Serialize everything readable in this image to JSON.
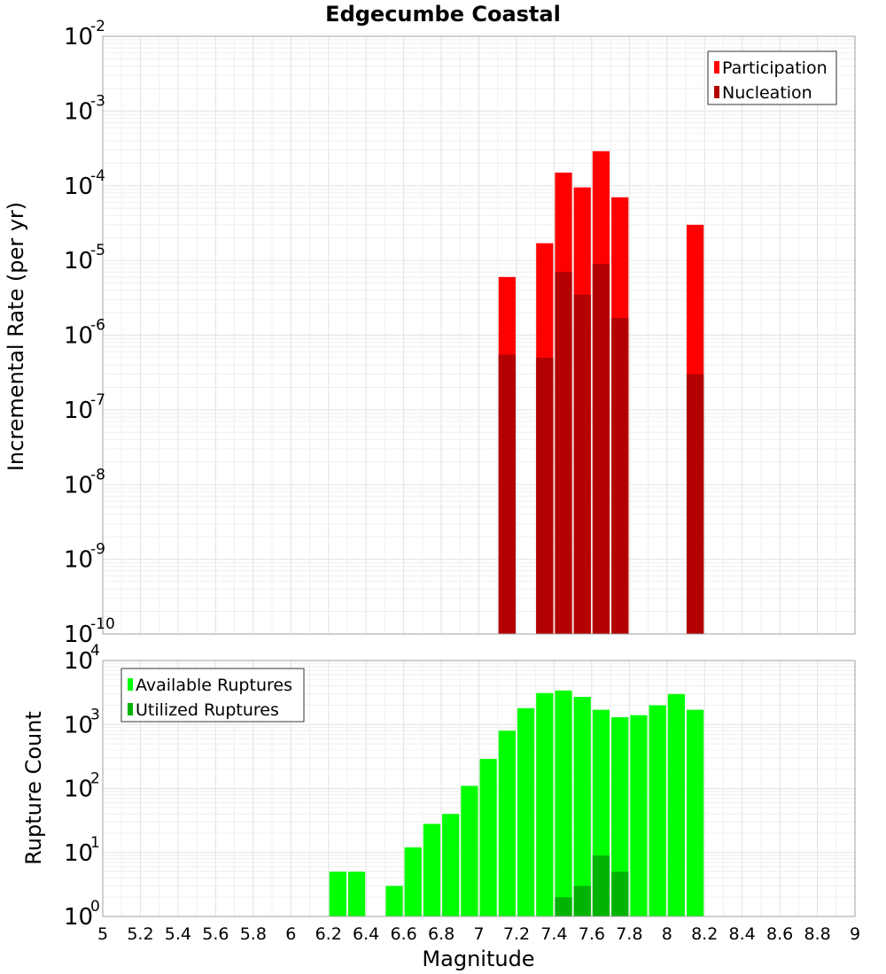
{
  "chart_data": [
    {
      "type": "bar",
      "title": "Edgecumbe Coastal",
      "xlabel": "",
      "ylabel": "Incremental Rate (per yr)",
      "y_scale": "log",
      "ylim_exp": [
        -10,
        -2
      ],
      "xlim": [
        5,
        9
      ],
      "grid": true,
      "legend_position": "top-right",
      "series": [
        {
          "name": "Participation",
          "color": "#ff0000",
          "points": [
            {
              "x": 7.15,
              "y": 6e-06
            },
            {
              "x": 7.35,
              "y": 1.7e-05
            },
            {
              "x": 7.45,
              "y": 0.00015
            },
            {
              "x": 7.55,
              "y": 9.5e-05
            },
            {
              "x": 7.65,
              "y": 0.00029
            },
            {
              "x": 7.75,
              "y": 7e-05
            },
            {
              "x": 8.15,
              "y": 3e-05
            }
          ]
        },
        {
          "name": "Nucleation",
          "color": "#b30000",
          "points": [
            {
              "x": 7.15,
              "y": 5.5e-07
            },
            {
              "x": 7.35,
              "y": 5e-07
            },
            {
              "x": 7.45,
              "y": 7e-06
            },
            {
              "x": 7.55,
              "y": 3.5e-06
            },
            {
              "x": 7.65,
              "y": 9e-06
            },
            {
              "x": 7.75,
              "y": 1.7e-06
            },
            {
              "x": 8.15,
              "y": 3e-07
            }
          ]
        }
      ]
    },
    {
      "type": "bar",
      "title": "",
      "xlabel": "Magnitude",
      "ylabel": "Rupture Count",
      "y_scale": "log",
      "ylim_exp": [
        0,
        4
      ],
      "xlim": [
        5,
        9
      ],
      "x_ticks": [
        "5",
        "5.2",
        "5.4",
        "5.6",
        "5.8",
        "6",
        "6.2",
        "6.4",
        "6.6",
        "6.8",
        "7",
        "7.2",
        "7.4",
        "7.6",
        "7.8",
        "8",
        "8.2",
        "8.4",
        "8.6",
        "8.8",
        "9"
      ],
      "grid": true,
      "legend_position": "top-left",
      "series": [
        {
          "name": "Available Ruptures",
          "color": "#00ff00",
          "points": [
            {
              "x": 6.15,
              "y": 1
            },
            {
              "x": 6.25,
              "y": 5
            },
            {
              "x": 6.35,
              "y": 5
            },
            {
              "x": 6.45,
              "y": 1
            },
            {
              "x": 6.55,
              "y": 3
            },
            {
              "x": 6.65,
              "y": 12
            },
            {
              "x": 6.75,
              "y": 28
            },
            {
              "x": 6.85,
              "y": 40
            },
            {
              "x": 6.95,
              "y": 110
            },
            {
              "x": 7.05,
              "y": 290
            },
            {
              "x": 7.15,
              "y": 800
            },
            {
              "x": 7.25,
              "y": 1800
            },
            {
              "x": 7.35,
              "y": 3100
            },
            {
              "x": 7.45,
              "y": 3400
            },
            {
              "x": 7.55,
              "y": 2700
            },
            {
              "x": 7.65,
              "y": 1700
            },
            {
              "x": 7.75,
              "y": 1300
            },
            {
              "x": 7.85,
              "y": 1400
            },
            {
              "x": 7.95,
              "y": 2000
            },
            {
              "x": 8.05,
              "y": 3000
            },
            {
              "x": 8.15,
              "y": 1700
            },
            {
              "x": 8.25,
              "y": 1
            }
          ]
        },
        {
          "name": "Utilized Ruptures",
          "color": "#00b300",
          "points": [
            {
              "x": 7.15,
              "y": 1
            },
            {
              "x": 7.35,
              "y": 1
            },
            {
              "x": 7.45,
              "y": 2
            },
            {
              "x": 7.55,
              "y": 3
            },
            {
              "x": 7.65,
              "y": 9
            },
            {
              "x": 7.75,
              "y": 5
            },
            {
              "x": 8.15,
              "y": 1
            }
          ]
        }
      ]
    }
  ]
}
